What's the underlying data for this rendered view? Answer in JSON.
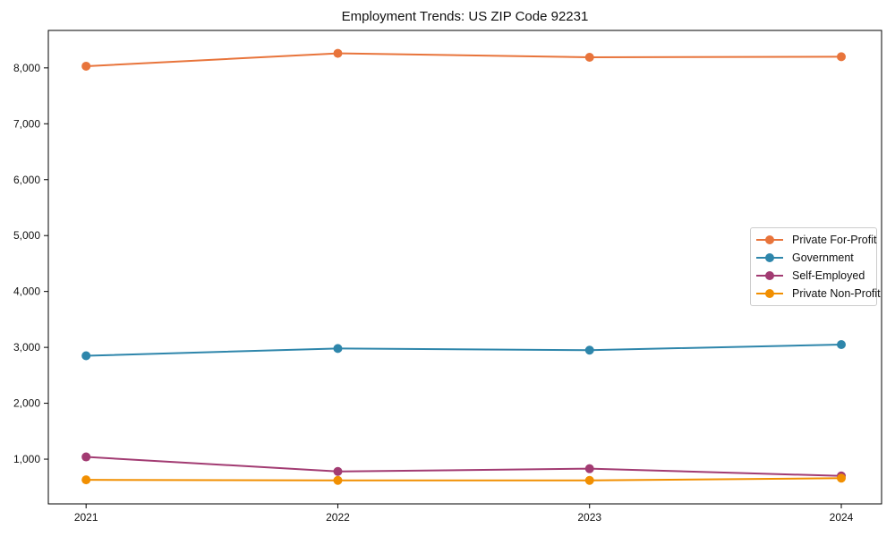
{
  "chart_data": {
    "type": "line",
    "title": "Employment Trends: US ZIP Code 92231",
    "xlabel": "",
    "ylabel": "",
    "x": [
      2021,
      2022,
      2023,
      2024
    ],
    "x_tick_labels": [
      "2021",
      "2022",
      "2023",
      "2024"
    ],
    "series": [
      {
        "name": "Private For-Profit",
        "color": "#E8743B",
        "values": [
          8030,
          8260,
          8190,
          8200
        ]
      },
      {
        "name": "Government",
        "color": "#2E86AB",
        "values": [
          2850,
          2980,
          2950,
          3050
        ]
      },
      {
        "name": "Self-Employed",
        "color": "#A23B72",
        "values": [
          1040,
          780,
          830,
          700
        ]
      },
      {
        "name": "Private Non-Profit",
        "color": "#F18F01",
        "values": [
          630,
          620,
          620,
          660
        ]
      }
    ],
    "yticks": [
      1000,
      2000,
      3000,
      4000,
      5000,
      6000,
      7000,
      8000
    ],
    "ytick_labels": [
      "1,000",
      "2,000",
      "3,000",
      "4,000",
      "5,000",
      "6,000",
      "7,000",
      "8,000"
    ],
    "ylim": [
      200,
      8670
    ],
    "xlim": [
      2020.85,
      2024.16
    ],
    "grid": false,
    "marker": "circle",
    "legend": {
      "position": "center-right",
      "entries": [
        "Private For-Profit",
        "Government",
        "Self-Employed",
        "Private Non-Profit"
      ]
    },
    "axes_color": "#000000"
  }
}
